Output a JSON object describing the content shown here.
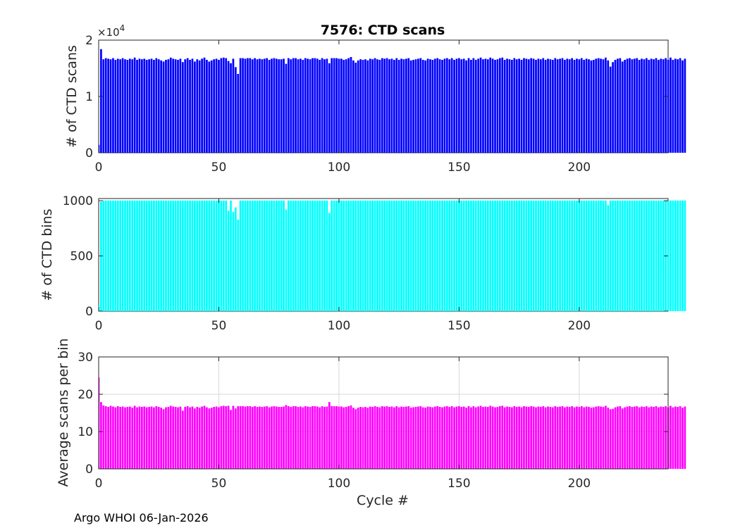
{
  "figure_title": "7576: CTD scans",
  "footer": "Argo WHOI 06-Jan-2026",
  "chart_data": [
    {
      "type": "bar",
      "name": "ctd-scans",
      "color": "#0000ff",
      "ylabel": "# of CTD scans",
      "xlabel": "",
      "xlim": [
        0,
        237
      ],
      "ylim": [
        0,
        20000
      ],
      "xticks": [
        0,
        50,
        100,
        150,
        200
      ],
      "yticks": [
        0,
        10000,
        20000
      ],
      "ytick_labels": [
        "0",
        "1",
        "2"
      ],
      "exponent_base": "×10",
      "exponent_power": "4",
      "grid": false,
      "values": [
        1400,
        18400,
        16600,
        16800,
        16700,
        16600,
        16800,
        16500,
        16700,
        16600,
        16800,
        16600,
        16500,
        16700,
        16600,
        16900,
        16500,
        16700,
        16600,
        16700,
        16500,
        16600,
        16700,
        16500,
        16800,
        16600,
        16400,
        16200,
        16500,
        16600,
        16900,
        16700,
        16600,
        16500,
        16700,
        16100,
        16600,
        16800,
        16500,
        16700,
        16200,
        16600,
        16400,
        16700,
        16900,
        16500,
        16200,
        16400,
        16600,
        16700,
        16500,
        16800,
        16900,
        16800,
        16300,
        15900,
        16700,
        15200,
        14000,
        16800,
        16800,
        16700,
        16800,
        16800,
        16600,
        16800,
        16600,
        16700,
        16600,
        16700,
        16800,
        16500,
        16700,
        16800,
        16700,
        16600,
        16600,
        16700,
        15800,
        16800,
        16600,
        16800,
        16800,
        16600,
        16700,
        16500,
        16800,
        16700,
        16600,
        16800,
        16800,
        16700,
        16500,
        16800,
        16600,
        16700,
        15900,
        16800,
        16800,
        16800,
        16700,
        16700,
        16500,
        16600,
        16800,
        17000,
        16400,
        16000,
        16400,
        16600,
        16500,
        16600,
        16400,
        16700,
        16600,
        16800,
        16600,
        16500,
        16800,
        16700,
        16800,
        16600,
        16700,
        16500,
        16800,
        16500,
        16700,
        16600,
        16700,
        16800,
        16400,
        16500,
        16600,
        16700,
        16800,
        16500,
        16400,
        16700,
        16600,
        16500,
        16700,
        16800,
        16600,
        16500,
        16700,
        16800,
        16600,
        16800,
        16500,
        16700,
        16800,
        16600,
        16700,
        16400,
        16800,
        16500,
        16800,
        16500,
        16700,
        16900,
        16600,
        16700,
        16600,
        16900,
        16700,
        16500,
        16600,
        16800,
        16900,
        16500,
        16700,
        16600,
        16500,
        16800,
        16600,
        16700,
        16500,
        16800,
        16700,
        16600,
        16800,
        16700,
        16500,
        16700,
        16600,
        16800,
        16500,
        16700,
        16600,
        16500,
        16800,
        16600,
        16700,
        16800,
        16500,
        16700,
        16600,
        16800,
        16500,
        16700,
        16600,
        16800,
        16500,
        16700,
        16600,
        16400,
        16500,
        16700,
        16800,
        16700,
        16600,
        16900,
        16400,
        15300,
        16100,
        16500,
        16700,
        16800,
        16200,
        16500,
        16700,
        16800,
        16600,
        16700,
        16800,
        16500,
        16700,
        16600,
        16800,
        16500,
        16700,
        16600,
        16800,
        16500,
        16700,
        16600,
        16800,
        16500,
        16900,
        16500,
        16700,
        16600,
        16800,
        16400,
        16700
      ]
    },
    {
      "type": "bar",
      "name": "ctd-bins",
      "color": "#00ffff",
      "ylabel": "# of CTD bins",
      "xlabel": "",
      "xlim": [
        0,
        237
      ],
      "ylim": [
        0,
        1020
      ],
      "xticks": [
        0,
        50,
        100,
        150,
        200
      ],
      "yticks": [
        0,
        500,
        1000
      ],
      "ytick_labels": [
        "0",
        "500",
        "1000"
      ],
      "grid": false,
      "values": [
        60,
        990,
        1002,
        1002,
        1002,
        1002,
        1002,
        1002,
        1002,
        1002,
        1002,
        1002,
        1002,
        1002,
        1002,
        1002,
        1002,
        1002,
        1002,
        1002,
        1002,
        1002,
        1002,
        1002,
        1002,
        1002,
        1002,
        1002,
        1002,
        1002,
        1002,
        1002,
        1002,
        1002,
        1002,
        1002,
        1002,
        1002,
        1002,
        1002,
        1002,
        1002,
        1002,
        1002,
        1002,
        1002,
        1002,
        1002,
        1002,
        1002,
        1002,
        1002,
        1002,
        1002,
        910,
        1002,
        900,
        940,
        830,
        1002,
        1002,
        1002,
        1002,
        1002,
        1002,
        1002,
        1002,
        1002,
        1002,
        1002,
        1002,
        1002,
        1002,
        1002,
        1002,
        1002,
        1002,
        1002,
        920,
        1002,
        1002,
        1002,
        1002,
        1002,
        1002,
        1002,
        1002,
        1002,
        1002,
        1002,
        1002,
        1002,
        1002,
        1002,
        1002,
        1002,
        890,
        1002,
        1002,
        1002,
        1002,
        1002,
        1002,
        1002,
        1002,
        1002,
        1002,
        1002,
        1002,
        1002,
        1002,
        1002,
        1002,
        1002,
        1002,
        1002,
        1002,
        1002,
        1002,
        1002,
        1002,
        1002,
        1002,
        1002,
        1002,
        1002,
        1002,
        1002,
        1002,
        1002,
        1002,
        1002,
        1002,
        1002,
        1002,
        1002,
        1002,
        1002,
        1002,
        1002,
        1002,
        1002,
        1002,
        1002,
        1002,
        1002,
        1002,
        1002,
        1002,
        1002,
        1002,
        1002,
        1002,
        1002,
        1002,
        1002,
        1002,
        1002,
        1002,
        1002,
        1002,
        1002,
        1002,
        1002,
        1002,
        1002,
        1002,
        1002,
        1002,
        1002,
        1002,
        1002,
        1002,
        1002,
        1002,
        1002,
        1002,
        1002,
        1002,
        1002,
        1002,
        1002,
        1002,
        1002,
        1002,
        1002,
        1002,
        1002,
        1002,
        1002,
        1002,
        1002,
        1002,
        1002,
        1002,
        1002,
        1002,
        1002,
        1002,
        1002,
        1002,
        1002,
        1002,
        1002,
        1002,
        1002,
        1002,
        1002,
        1002,
        1002,
        1002,
        1002,
        960,
        1002,
        1002,
        1002,
        1002,
        1002,
        1002,
        1002,
        1002,
        1002,
        1002,
        1002,
        1002,
        1002,
        1002,
        1002,
        1002,
        1002,
        1002,
        1002,
        1002,
        1002,
        1002,
        1002,
        1002,
        1002,
        1002,
        1002,
        1002,
        1002,
        1002,
        1002,
        1002
      ]
    },
    {
      "type": "bar",
      "name": "avg-scans-per-bin",
      "color": "#ff00ff",
      "ylabel": "Average scans per bin",
      "xlabel": "Cycle #",
      "xlim": [
        0,
        237
      ],
      "ylim": [
        0,
        30
      ],
      "xticks": [
        0,
        50,
        100,
        150,
        200
      ],
      "yticks": [
        0,
        10,
        20,
        30
      ],
      "ytick_labels": [
        "0",
        "10",
        "20",
        "30"
      ],
      "grid": true,
      "values": [
        24.5,
        17.9,
        17.0,
        16.8,
        16.6,
        16.9,
        16.7,
        16.5,
        16.8,
        16.6,
        16.7,
        16.5,
        16.6,
        16.7,
        16.4,
        16.9,
        16.5,
        16.7,
        16.6,
        16.7,
        16.5,
        16.6,
        16.7,
        16.5,
        16.8,
        16.6,
        16.4,
        16.0,
        16.5,
        16.6,
        16.9,
        16.7,
        16.6,
        16.5,
        16.7,
        15.6,
        16.6,
        16.8,
        16.5,
        16.7,
        16.2,
        16.6,
        16.4,
        16.7,
        16.9,
        16.5,
        16.2,
        16.4,
        16.6,
        16.7,
        16.5,
        16.8,
        16.9,
        16.8,
        16.9,
        15.8,
        16.9,
        16.2,
        16.8,
        16.8,
        16.8,
        16.7,
        16.8,
        16.8,
        16.6,
        16.8,
        16.6,
        16.7,
        16.6,
        16.7,
        16.8,
        16.5,
        16.7,
        16.8,
        16.7,
        16.6,
        16.6,
        16.7,
        17.1,
        16.8,
        16.6,
        16.8,
        16.8,
        16.6,
        16.7,
        16.5,
        16.8,
        16.7,
        16.6,
        16.8,
        16.8,
        16.7,
        16.5,
        16.8,
        16.6,
        16.7,
        17.9,
        16.8,
        16.8,
        16.8,
        16.7,
        16.7,
        16.5,
        16.6,
        16.8,
        17.0,
        16.4,
        16.0,
        16.4,
        16.6,
        16.5,
        16.6,
        16.4,
        16.7,
        16.6,
        16.8,
        16.6,
        16.5,
        16.8,
        16.7,
        16.8,
        16.6,
        16.7,
        16.5,
        16.8,
        16.5,
        16.7,
        16.6,
        16.7,
        16.8,
        16.4,
        16.5,
        16.6,
        16.7,
        16.8,
        16.5,
        16.4,
        16.7,
        16.6,
        16.5,
        16.7,
        16.8,
        16.6,
        16.5,
        16.7,
        16.8,
        16.6,
        16.8,
        16.5,
        16.7,
        16.8,
        16.6,
        16.7,
        16.4,
        16.8,
        16.5,
        16.8,
        16.5,
        16.7,
        16.9,
        16.6,
        16.7,
        16.6,
        16.9,
        16.7,
        16.5,
        16.6,
        16.8,
        16.9,
        16.5,
        16.7,
        16.6,
        16.5,
        16.8,
        16.6,
        16.7,
        16.5,
        16.8,
        16.7,
        16.6,
        16.8,
        16.7,
        16.5,
        16.7,
        16.6,
        16.8,
        16.5,
        16.7,
        16.6,
        16.5,
        16.8,
        16.6,
        16.7,
        16.8,
        16.5,
        16.7,
        16.6,
        16.8,
        16.5,
        16.7,
        16.6,
        16.8,
        16.5,
        16.7,
        16.6,
        16.4,
        16.5,
        16.7,
        16.8,
        16.7,
        16.6,
        16.9,
        16.4,
        16.0,
        16.1,
        16.5,
        16.7,
        16.8,
        16.2,
        16.5,
        16.7,
        16.8,
        16.6,
        16.7,
        16.8,
        16.5,
        16.7,
        16.6,
        16.8,
        16.5,
        16.7,
        16.6,
        16.8,
        16.5,
        16.7,
        16.6,
        16.8,
        16.5,
        16.9,
        16.5,
        16.7,
        16.6,
        16.8,
        16.4,
        16.7
      ]
    }
  ]
}
